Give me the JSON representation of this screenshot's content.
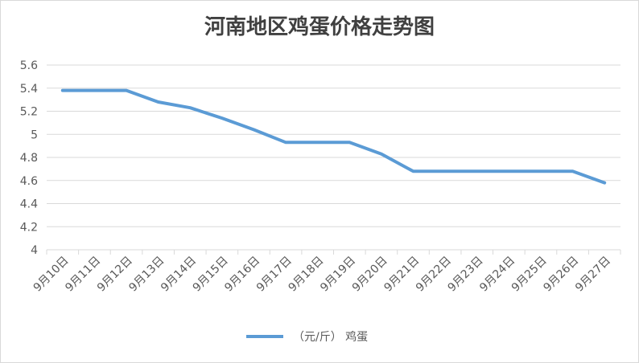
{
  "chart_data": {
    "type": "line",
    "title": "河南地区鸡蛋价格走势图",
    "xlabel": "",
    "ylabel": "",
    "categories": [
      "9月10日",
      "9月11日",
      "9月12日",
      "9月13日",
      "9月14日",
      "9月15日",
      "9月16日",
      "9月17日",
      "9月18日",
      "9月19日",
      "9月20日",
      "9月21日",
      "9月22日",
      "9月23日",
      "9月24日",
      "9月25日",
      "9月26日",
      "9月27日"
    ],
    "series": [
      {
        "name": "（元/斤） 鸡蛋",
        "color": "#5b9bd5",
        "values": [
          5.38,
          5.38,
          5.38,
          5.28,
          5.23,
          5.14,
          5.04,
          4.93,
          4.93,
          4.93,
          4.83,
          4.68,
          4.68,
          4.68,
          4.68,
          4.68,
          4.68,
          4.58
        ]
      }
    ],
    "ylim": [
      4,
      5.6
    ],
    "yticks": [
      "4",
      "4.2",
      "4.4",
      "4.6",
      "4.8",
      "5",
      "5.2",
      "5.4",
      "5.6"
    ],
    "grid": true,
    "legend_position": "bottom"
  }
}
